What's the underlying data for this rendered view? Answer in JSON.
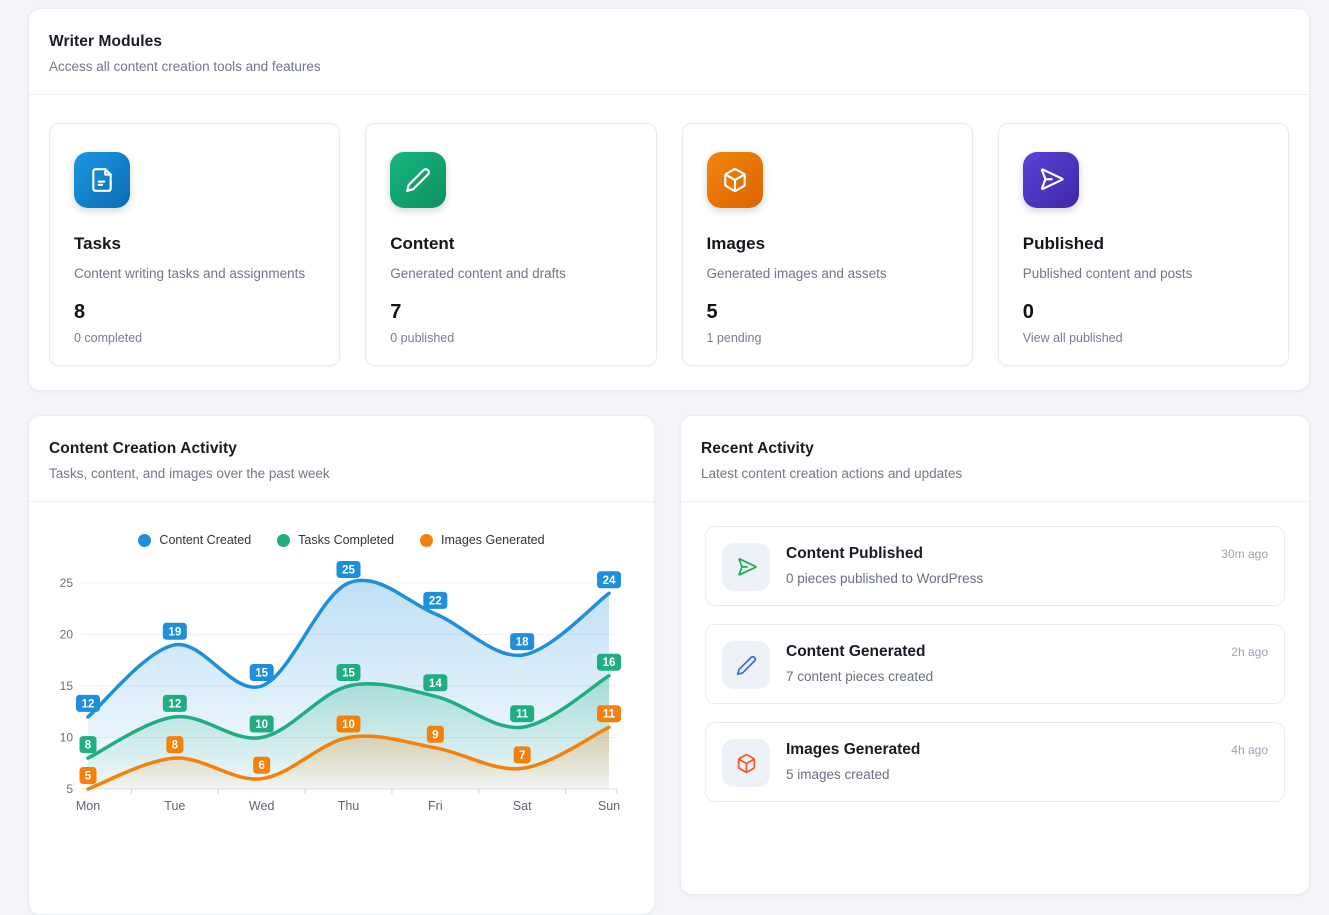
{
  "theme": {
    "page_bg": "#f5f6fa",
    "card_bg": "#ffffff",
    "accent_blue": "#1d8fdb",
    "accent_green": "#1fae80",
    "accent_orange": "#f4810c",
    "accent_purple": "#5a43d8",
    "activity_icon_green": "#1fa94f",
    "activity_icon_blue": "#3b6ce8",
    "activity_icon_orange": "#f05a28"
  },
  "writer_modules": {
    "title": "Writer Modules",
    "subtitle": "Access all content creation tools and features",
    "cards": [
      {
        "icon": "file-text-icon",
        "title": "Tasks",
        "desc": "Content writing tasks and assignments",
        "count": "8",
        "sublabel": "0 completed",
        "color": "#1b8fd9"
      },
      {
        "icon": "pencil-icon",
        "title": "Content",
        "desc": "Generated content and drafts",
        "count": "7",
        "sublabel": "0 published",
        "color": "#14a873"
      },
      {
        "icon": "box-icon",
        "title": "Images",
        "desc": "Generated images and assets",
        "count": "5",
        "sublabel": "1 pending",
        "color": "#ea7506"
      },
      {
        "icon": "send-icon",
        "title": "Published",
        "desc": "Published content and posts",
        "count": "0",
        "sublabel": "View all published",
        "color": "#5138c8"
      }
    ]
  },
  "chart_panel": {
    "title": "Content Creation Activity",
    "subtitle": "Tasks, content, and images over the past week"
  },
  "chart_data": {
    "type": "line",
    "title": "Content Creation Activity",
    "categories": [
      "Mon",
      "Tue",
      "Wed",
      "Thu",
      "Fri",
      "Sat",
      "Sun"
    ],
    "series": [
      {
        "name": "Content Created",
        "color": "#1d8fdb",
        "values": [
          12,
          19,
          15,
          25,
          22,
          18,
          24
        ]
      },
      {
        "name": "Tasks Completed",
        "color": "#1fae80",
        "values": [
          8,
          12,
          10,
          15,
          14,
          11,
          16
        ]
      },
      {
        "name": "Images Generated",
        "color": "#f4810c",
        "values": [
          5,
          8,
          6,
          10,
          9,
          7,
          11
        ]
      }
    ],
    "xlabel": "",
    "ylabel": "",
    "ylim": [
      5,
      25
    ],
    "yticks": [
      5,
      10,
      15,
      20,
      25
    ],
    "smooth": true,
    "area": true,
    "grid": true,
    "legend_position": "top",
    "point_labels": true
  },
  "activity_panel": {
    "title": "Recent Activity",
    "subtitle": "Latest content creation actions and updates",
    "items": [
      {
        "icon": "send-icon",
        "title": "Content Published",
        "desc": "0 pieces published to WordPress",
        "time": "30m ago"
      },
      {
        "icon": "pencil-icon",
        "title": "Content Generated",
        "desc": "7 content pieces created",
        "time": "2h ago"
      },
      {
        "icon": "box-icon",
        "title": "Images Generated",
        "desc": "5 images created",
        "time": "4h ago"
      }
    ]
  }
}
